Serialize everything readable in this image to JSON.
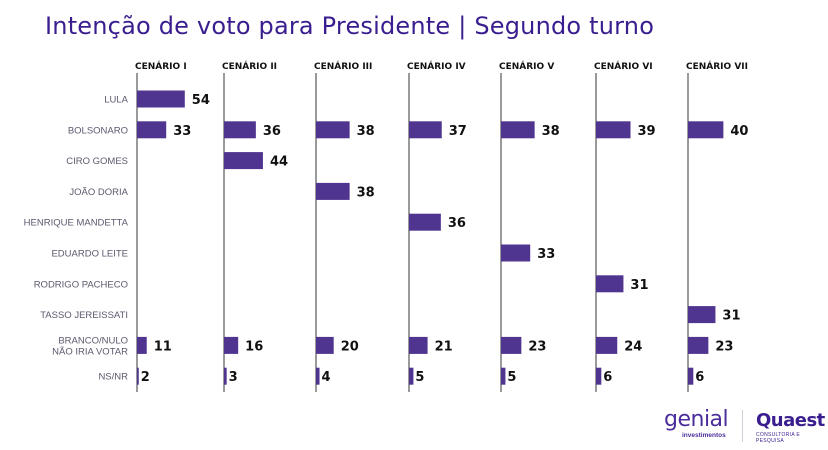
{
  "title": "Intenção de voto para Presidente | Segundo turno",
  "logos": {
    "genial": "genial",
    "genial_sub": "investimentos",
    "quaest": "Quaest",
    "quaest_sub": "CONSULTORIA E PESQUISA"
  },
  "colors": {
    "bar": "#4f3590",
    "axis": "#808080",
    "title": "#3a1d8f"
  },
  "chart_data": {
    "type": "bar",
    "orientation": "horizontal",
    "title": "Intenção de voto para Presidente | Segundo turno",
    "categories": [
      "LULA",
      "BOLSONARO",
      "CIRO GOMES",
      "JOÃO DORIA",
      "HENRIQUE MANDETTA",
      "EDUARDO LEITE",
      "RODRIGO PACHECO",
      "TASSO JEREISSATI",
      "BRANCO/NULO\nNÃO IRIA VOTAR",
      "NS/NR"
    ],
    "series": [
      {
        "name": "CENÁRIO I",
        "values": [
          54,
          33,
          null,
          null,
          null,
          null,
          null,
          null,
          11,
          2
        ]
      },
      {
        "name": "CENÁRIO II",
        "values": [
          null,
          36,
          44,
          null,
          null,
          null,
          null,
          null,
          16,
          3
        ]
      },
      {
        "name": "CENÁRIO III",
        "values": [
          null,
          38,
          null,
          38,
          null,
          null,
          null,
          null,
          20,
          4
        ]
      },
      {
        "name": "CENÁRIO IV",
        "values": [
          null,
          37,
          null,
          null,
          36,
          null,
          null,
          null,
          21,
          5
        ]
      },
      {
        "name": "CENÁRIO V",
        "values": [
          null,
          38,
          null,
          null,
          null,
          33,
          null,
          null,
          23,
          5
        ]
      },
      {
        "name": "CENÁRIO VI",
        "values": [
          null,
          39,
          null,
          null,
          null,
          null,
          31,
          null,
          24,
          6
        ]
      },
      {
        "name": "CENÁRIO VII",
        "values": [
          null,
          40,
          null,
          null,
          null,
          null,
          null,
          31,
          23,
          6
        ]
      }
    ],
    "xlabel": "",
    "ylabel": "",
    "xlim": [
      0,
      100
    ],
    "grid": false,
    "legend": "none"
  }
}
